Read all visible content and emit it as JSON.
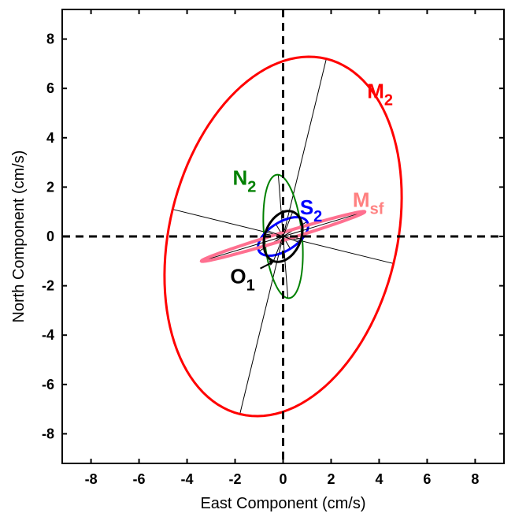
{
  "chart_data": {
    "type": "scatter",
    "xlabel": "East Component (cm/s)",
    "ylabel": "North Component (cm/s)",
    "xlim": [
      -9.2,
      9.2
    ],
    "ylim": [
      -9.2,
      9.2
    ],
    "xticks": [
      -8,
      -6,
      -4,
      -2,
      0,
      2,
      4,
      6,
      8
    ],
    "yticks": [
      -8,
      -6,
      -4,
      -2,
      0,
      2,
      4,
      6,
      8
    ],
    "grid": false,
    "reference_lines": [
      "x = 0 (dashed)",
      "y = 0 (dashed)"
    ],
    "series": [
      {
        "name": "M2",
        "label": "M",
        "sub": "2",
        "color": "#ff0000",
        "major_axis": [
          [
            1.8,
            7.2
          ],
          [
            -1.8,
            -7.2
          ]
        ],
        "minor_axis": [
          [
            -4.6,
            1.1
          ],
          [
            4.6,
            -1.1
          ]
        ]
      },
      {
        "name": "N2",
        "label": "N",
        "sub": "2",
        "color": "#008000",
        "major_axis": [
          [
            -0.2,
            2.5
          ],
          [
            0.2,
            -2.5
          ]
        ],
        "minor_axis": [
          [
            -0.8,
            0.1
          ],
          [
            0.8,
            -0.1
          ]
        ]
      },
      {
        "name": "S2",
        "label": "S",
        "sub": "2",
        "color": "#0000ff",
        "major_axis": [
          [
            1.0,
            0.6
          ],
          [
            -1.0,
            -0.6
          ]
        ],
        "minor_axis": [
          [
            -0.3,
            0.5
          ],
          [
            0.3,
            -0.5
          ]
        ]
      },
      {
        "name": "Msf",
        "label": "M",
        "sub": "sf",
        "color": "#ff7090",
        "major_axis": [
          [
            3.4,
            1.0
          ],
          [
            -3.4,
            -1.0
          ]
        ],
        "minor_axis": [
          [
            -0.05,
            0.15
          ],
          [
            0.05,
            -0.15
          ]
        ]
      },
      {
        "name": "O1",
        "label": "O",
        "sub": "1",
        "color": "#000000",
        "major_axis": [
          [
            0.4,
            1.0
          ],
          [
            -0.4,
            -1.0
          ]
        ],
        "minor_axis": [
          [
            -0.7,
            0.25
          ],
          [
            0.7,
            -0.25
          ]
        ]
      }
    ]
  }
}
